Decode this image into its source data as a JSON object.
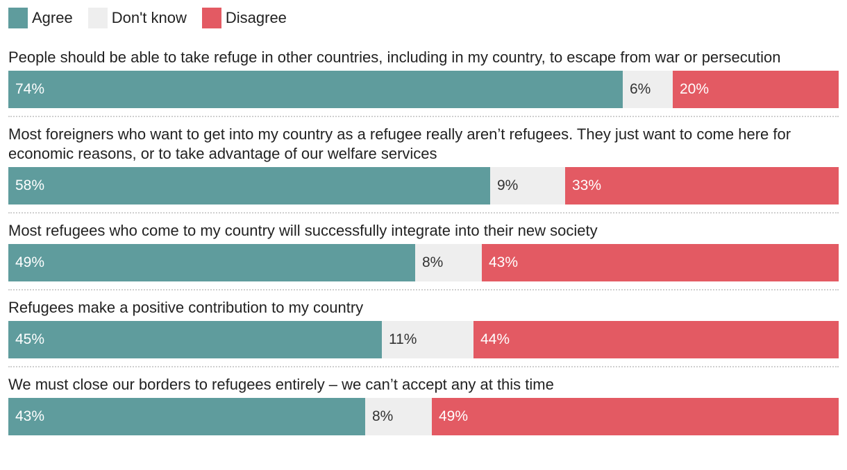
{
  "chart_data": {
    "type": "bar",
    "orientation": "horizontal-stacked-100",
    "legend": [
      {
        "key": "agree",
        "label": "Agree",
        "color": "#5f9c9d"
      },
      {
        "key": "dk",
        "label": "Don't know",
        "color": "#eeeeee"
      },
      {
        "key": "disagree",
        "label": "Disagree",
        "color": "#e35a63"
      }
    ],
    "rows": [
      {
        "question": "People should be able to take refuge in other countries, including in my country, to escape from war or persecution",
        "agree": 74,
        "dk": 6,
        "disagree": 20,
        "labels": {
          "agree": "74%",
          "dk": "6%",
          "disagree": "20%"
        }
      },
      {
        "question": "Most foreigners who want to get into my country as a refugee really aren’t refugees. They just want to come here for economic reasons, or to take advantage of our welfare services",
        "agree": 58,
        "dk": 9,
        "disagree": 33,
        "labels": {
          "agree": "58%",
          "dk": "9%",
          "disagree": "33%"
        }
      },
      {
        "question": "Most refugees who come to my country will successfully integrate into their new society",
        "agree": 49,
        "dk": 8,
        "disagree": 43,
        "labels": {
          "agree": "49%",
          "dk": "8%",
          "disagree": "43%"
        }
      },
      {
        "question": "Refugees make a positive contribution to my country",
        "agree": 45,
        "dk": 11,
        "disagree": 44,
        "labels": {
          "agree": "45%",
          "dk": "11%",
          "disagree": "44%"
        }
      },
      {
        "question": "We must close our borders to refugees entirely – we can’t accept any at this time",
        "agree": 43,
        "dk": 8,
        "disagree": 49,
        "labels": {
          "agree": "43%",
          "dk": "8%",
          "disagree": "49%"
        }
      }
    ]
  }
}
